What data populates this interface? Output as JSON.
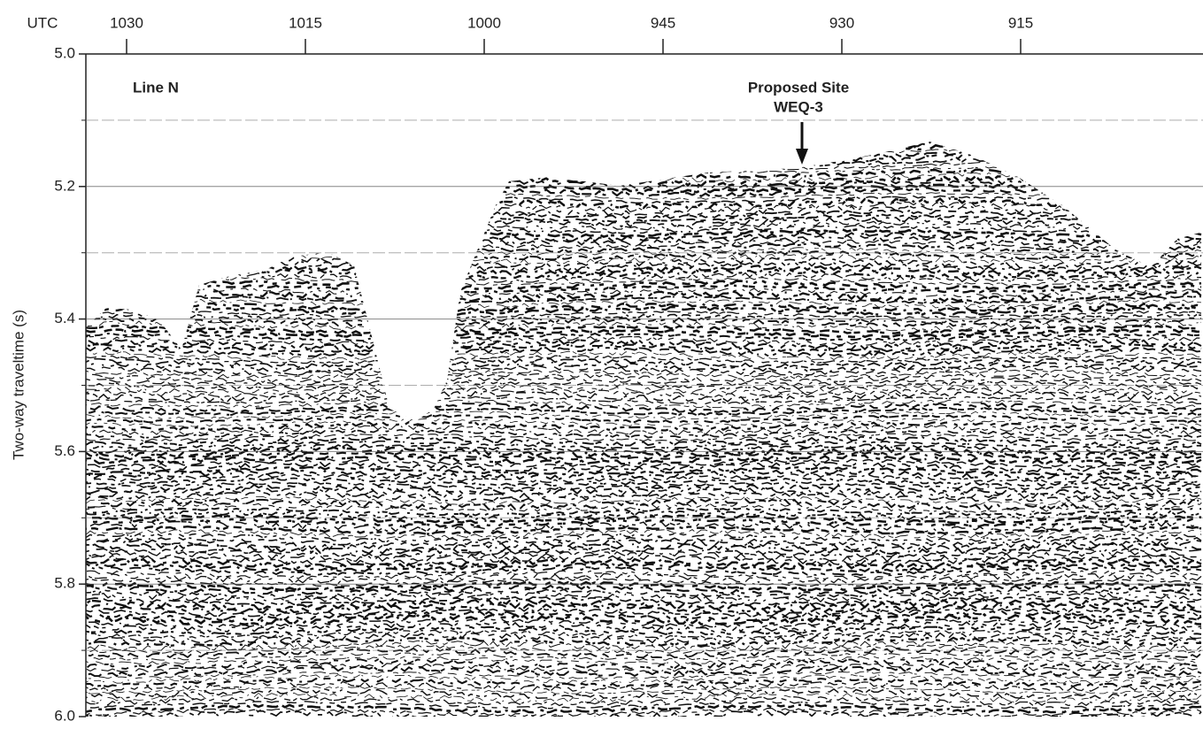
{
  "chart_data": {
    "type": "seismic",
    "x_label": "UTC",
    "y_label": "Two-way traveltime (s)",
    "categories": [
      "1030",
      "1015",
      "1000",
      "945",
      "930",
      "915"
    ],
    "ylim": [
      5.0,
      6.0
    ],
    "y_inverted": true,
    "yticks": [
      {
        "value": 5.0,
        "label": "5.0"
      },
      5.2,
      5.4,
      5.6,
      5.8,
      {
        "value": 6.0,
        "label": "6.0"
      }
    ],
    "yminor": [
      5.1,
      5.3,
      5.5,
      5.7,
      5.9
    ],
    "grid": true,
    "annotations": [
      "Line N",
      "Proposed Site",
      "WEQ-3"
    ]
  }
}
